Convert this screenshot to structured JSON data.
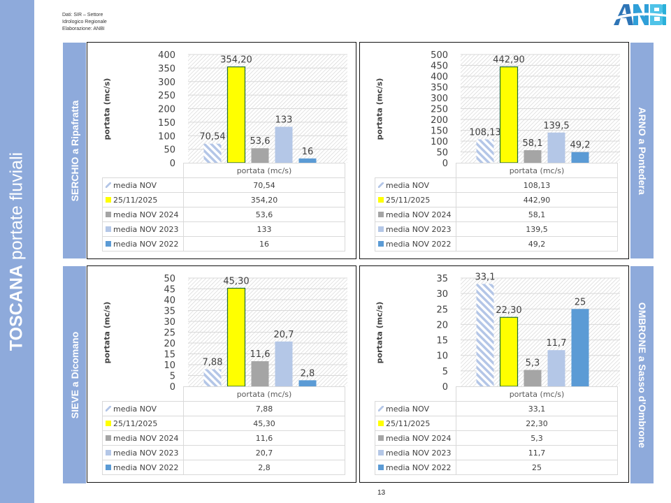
{
  "page": {
    "title_bold": "TOSCANA",
    "title_rest": " portate fluviali",
    "source_lines": [
      "Dati: SIR – Settore",
      "Idrologico Regionale",
      "Elaborazione: ANBI"
    ],
    "logo_text": "ANBI",
    "page_number": "13"
  },
  "colors": {
    "band": "#8eaadb",
    "media_nov": "#b4c6e7",
    "date": "#ffff00",
    "nov2024": "#a5a5a5",
    "nov2023": "#b4c7e7",
    "nov2022": "#5b9bd5",
    "date_border": "#1f6b3a"
  },
  "chart_data": [
    {
      "type": "bar",
      "station": "SERCHIO a Ripafratta",
      "ylabel": "portata (mc/s)",
      "xlabel": "portata (mc/s)",
      "ylim": [
        0,
        400
      ],
      "yticks": [
        "0",
        "50",
        "100",
        "150",
        "200",
        "250",
        "300",
        "350",
        "400"
      ],
      "ystep": 50,
      "series": [
        {
          "name": "media NOV",
          "value": 70.54,
          "label": "70,54",
          "key": "media_nov"
        },
        {
          "name": "25/11/2025",
          "value": 354.2,
          "label": "354,20",
          "key": "date"
        },
        {
          "name": "media NOV 2024",
          "value": 53.6,
          "label": "53,6",
          "key": "nov2024"
        },
        {
          "name": "media NOV 2023",
          "value": 133,
          "label": "133",
          "key": "nov2023"
        },
        {
          "name": "media NOV 2022",
          "value": 16,
          "label": "16",
          "key": "nov2022"
        }
      ]
    },
    {
      "type": "bar",
      "station": "ARNO a Pontedera",
      "ylabel": "portata (mc/s)",
      "xlabel": "portata (mc/s)",
      "ylim": [
        0,
        500
      ],
      "yticks": [
        "0",
        "50",
        "100",
        "150",
        "200",
        "250",
        "300",
        "350",
        "400",
        "450",
        "500"
      ],
      "ystep": 50,
      "series": [
        {
          "name": "media NOV",
          "value": 108.13,
          "label": "108,13",
          "key": "media_nov"
        },
        {
          "name": "25/11/2025",
          "value": 442.9,
          "label": "442,90",
          "key": "date"
        },
        {
          "name": "media NOV 2024",
          "value": 58.1,
          "label": "58,1",
          "key": "nov2024"
        },
        {
          "name": "media NOV 2023",
          "value": 139.5,
          "label": "139,5",
          "key": "nov2023"
        },
        {
          "name": "media NOV 2022",
          "value": 49.2,
          "label": "49,2",
          "key": "nov2022"
        }
      ]
    },
    {
      "type": "bar",
      "station": "SIEVE a Dicomano",
      "ylabel": "portata (mc/s)",
      "xlabel": "portata (mc/s)",
      "ylim": [
        0,
        50
      ],
      "yticks": [
        "0",
        "5",
        "10",
        "15",
        "20",
        "25",
        "30",
        "35",
        "40",
        "45",
        "50"
      ],
      "ystep": 5,
      "series": [
        {
          "name": "media NOV",
          "value": 7.88,
          "label": "7,88",
          "key": "media_nov"
        },
        {
          "name": "25/11/2025",
          "value": 45.3,
          "label": "45,30",
          "key": "date"
        },
        {
          "name": "media NOV 2024",
          "value": 11.6,
          "label": "11,6",
          "key": "nov2024"
        },
        {
          "name": "media NOV 2023",
          "value": 20.7,
          "label": "20,7",
          "key": "nov2023"
        },
        {
          "name": "media NOV 2022",
          "value": 2.8,
          "label": "2,8",
          "key": "nov2022"
        }
      ]
    },
    {
      "type": "bar",
      "station": "OMBRONE a Sasso d’Ombrone",
      "ylabel": "portata (mc/s)",
      "xlabel": "portata (mc/s)",
      "ylim": [
        0,
        35
      ],
      "yticks": [
        "0",
        "5",
        "10",
        "15",
        "20",
        "25",
        "30",
        "35"
      ],
      "ystep": 5,
      "series": [
        {
          "name": "media NOV",
          "value": 33.1,
          "label": "33,1",
          "key": "media_nov"
        },
        {
          "name": "25/11/2025",
          "value": 22.3,
          "label": "22,30",
          "key": "date"
        },
        {
          "name": "media NOV 2024",
          "value": 5.3,
          "label": "5,3",
          "key": "nov2024"
        },
        {
          "name": "media NOV 2023",
          "value": 11.7,
          "label": "11,7",
          "key": "nov2023"
        },
        {
          "name": "media NOV 2022",
          "value": 25,
          "label": "25",
          "key": "nov2022"
        }
      ]
    }
  ]
}
